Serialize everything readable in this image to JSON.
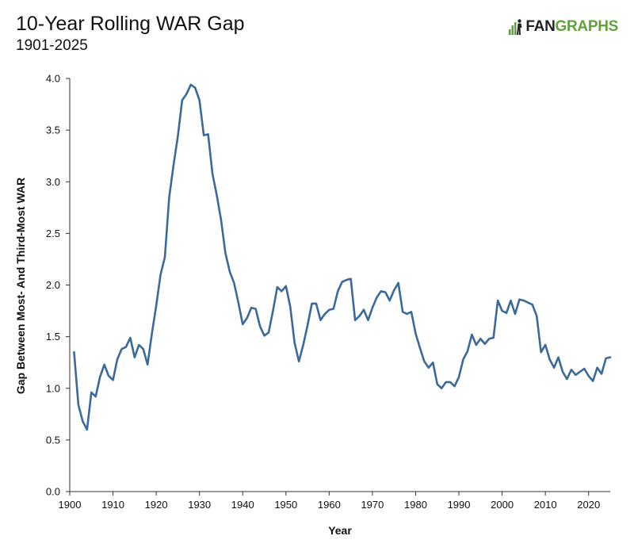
{
  "header": {
    "title": "10-Year Rolling WAR Gap",
    "subtitle": "1901-2025",
    "logo": {
      "fan": "FAN",
      "graphs": "GRAPHS",
      "fan_color": "#222222",
      "graphs_color": "#5fa23a"
    }
  },
  "chart_data": {
    "type": "line",
    "title": "10-Year Rolling WAR Gap",
    "subtitle": "1901-2025",
    "xlabel": "Year",
    "ylabel": "Gap Between Most- And Third-Most WAR",
    "xlim": [
      1900,
      2025
    ],
    "ylim": [
      0,
      4
    ],
    "x_ticks": [
      1900,
      1910,
      1920,
      1930,
      1940,
      1950,
      1960,
      1970,
      1980,
      1990,
      2000,
      2010,
      2020
    ],
    "y_ticks": [
      0.0,
      0.5,
      1.0,
      1.5,
      2.0,
      2.5,
      3.0,
      3.5,
      4.0
    ],
    "y_tick_labels": [
      "0.0",
      "0.5",
      "1.0",
      "1.5",
      "2.0",
      "2.5",
      "3.0",
      "3.5",
      "4.0"
    ],
    "grid": false,
    "line_color": "#3b6a9a",
    "series": [
      {
        "name": "",
        "x": [
          1901,
          1902,
          1903,
          1904,
          1905,
          1906,
          1907,
          1908,
          1909,
          1910,
          1911,
          1912,
          1913,
          1914,
          1915,
          1916,
          1917,
          1918,
          1919,
          1920,
          1921,
          1922,
          1923,
          1924,
          1925,
          1926,
          1927,
          1928,
          1929,
          1930,
          1931,
          1932,
          1933,
          1934,
          1935,
          1936,
          1937,
          1938,
          1939,
          1940,
          1941,
          1942,
          1943,
          1944,
          1945,
          1946,
          1947,
          1948,
          1949,
          1950,
          1951,
          1952,
          1953,
          1954,
          1955,
          1956,
          1957,
          1958,
          1959,
          1960,
          1961,
          1962,
          1963,
          1964,
          1965,
          1966,
          1967,
          1968,
          1969,
          1970,
          1971,
          1972,
          1973,
          1974,
          1975,
          1976,
          1977,
          1978,
          1979,
          1980,
          1981,
          1982,
          1983,
          1984,
          1985,
          1986,
          1987,
          1988,
          1989,
          1990,
          1991,
          1992,
          1993,
          1994,
          1995,
          1996,
          1997,
          1998,
          1999,
          2000,
          2001,
          2002,
          2003,
          2004,
          2005,
          2006,
          2007,
          2008,
          2009,
          2010,
          2011,
          2012,
          2013,
          2014,
          2015,
          2016,
          2017,
          2018,
          2019,
          2020,
          2021,
          2022,
          2023,
          2024,
          2025
        ],
        "values": [
          1.35,
          0.84,
          0.68,
          0.6,
          0.96,
          0.92,
          1.11,
          1.23,
          1.12,
          1.08,
          1.28,
          1.38,
          1.4,
          1.49,
          1.3,
          1.42,
          1.38,
          1.23,
          1.53,
          1.8,
          2.1,
          2.27,
          2.85,
          3.16,
          3.44,
          3.79,
          3.85,
          3.94,
          3.91,
          3.79,
          3.45,
          3.46,
          3.08,
          2.87,
          2.63,
          2.31,
          2.13,
          2.02,
          1.83,
          1.62,
          1.68,
          1.78,
          1.77,
          1.6,
          1.51,
          1.54,
          1.75,
          1.98,
          1.94,
          1.99,
          1.79,
          1.44,
          1.26,
          1.42,
          1.61,
          1.82,
          1.82,
          1.66,
          1.72,
          1.76,
          1.77,
          1.94,
          2.03,
          2.05,
          2.06,
          1.66,
          1.7,
          1.76,
          1.66,
          1.78,
          1.88,
          1.94,
          1.93,
          1.85,
          1.95,
          2.02,
          1.74,
          1.72,
          1.74,
          1.53,
          1.39,
          1.26,
          1.2,
          1.25,
          1.04,
          1.0,
          1.06,
          1.06,
          1.02,
          1.11,
          1.28,
          1.36,
          1.52,
          1.42,
          1.48,
          1.43,
          1.48,
          1.49,
          1.85,
          1.75,
          1.73,
          1.85,
          1.72,
          1.86,
          1.85,
          1.83,
          1.81,
          1.7,
          1.35,
          1.42,
          1.28,
          1.2,
          1.3,
          1.16,
          1.09,
          1.18,
          1.13,
          1.16,
          1.19,
          1.12,
          1.07,
          1.2,
          1.14,
          1.29,
          1.3
        ]
      }
    ]
  }
}
